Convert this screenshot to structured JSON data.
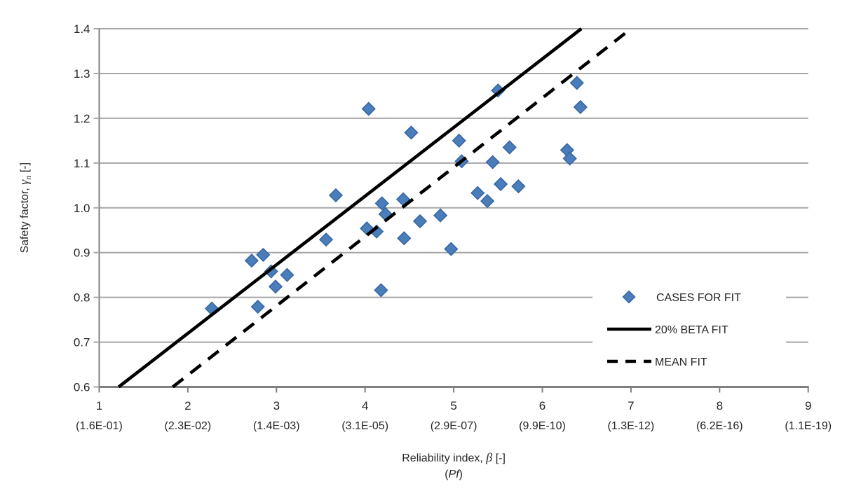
{
  "chart_data": {
    "type": "scatter",
    "title": "",
    "xlabel": {
      "text": "Reliability index, ",
      "symbol": "β",
      "unit": " [-]"
    },
    "xlabel_sub": {
      "pre": "(",
      "em": "Pf",
      "post": ")"
    },
    "ylabel": {
      "text": "Safety factor, ",
      "symbol": "γ",
      "sub": "n",
      "unit": " [-]"
    },
    "xlim": [
      1,
      9
    ],
    "ylim": [
      0.6,
      1.4
    ],
    "grid": true,
    "legend_position": "inside-lower-right",
    "x_ticks": [
      {
        "beta": "1",
        "pf": "(1.6E-01)"
      },
      {
        "beta": "2",
        "pf": "(2.3E-02)"
      },
      {
        "beta": "3",
        "pf": "(1.4E-03)"
      },
      {
        "beta": "4",
        "pf": "(3.1E-05)"
      },
      {
        "beta": "5",
        "pf": "(2.9E-07)"
      },
      {
        "beta": "6",
        "pf": "(9.9E-10)"
      },
      {
        "beta": "7",
        "pf": "(1.3E-12)"
      },
      {
        "beta": "8",
        "pf": "(6.2E-16)"
      },
      {
        "beta": "9",
        "pf": "(1.1E-19)"
      }
    ],
    "y_ticks": [
      "0.6",
      "0.7",
      "0.8",
      "0.9",
      "1.0",
      "1.1",
      "1.2",
      "1.3",
      "1.4"
    ],
    "series": [
      {
        "name": "CASES FOR FIT",
        "kind": "scatter",
        "marker": "diamond",
        "points": [
          [
            2.27,
            0.775
          ],
          [
            2.72,
            0.882
          ],
          [
            2.79,
            0.779
          ],
          [
            2.85,
            0.895
          ],
          [
            2.94,
            0.858
          ],
          [
            2.99,
            0.824
          ],
          [
            3.12,
            0.85
          ],
          [
            3.56,
            0.929
          ],
          [
            3.67,
            1.028
          ],
          [
            4.02,
            0.954
          ],
          [
            4.04,
            1.221
          ],
          [
            4.13,
            0.947
          ],
          [
            4.18,
            0.816
          ],
          [
            4.19,
            1.01
          ],
          [
            4.23,
            0.986
          ],
          [
            4.43,
            1.019
          ],
          [
            4.44,
            0.932
          ],
          [
            4.52,
            1.168
          ],
          [
            4.62,
            0.97
          ],
          [
            4.85,
            0.983
          ],
          [
            4.97,
            0.908
          ],
          [
            5.06,
            1.15
          ],
          [
            5.09,
            1.104
          ],
          [
            5.27,
            1.033
          ],
          [
            5.38,
            1.015
          ],
          [
            5.44,
            1.102
          ],
          [
            5.5,
            1.262
          ],
          [
            5.53,
            1.053
          ],
          [
            5.63,
            1.135
          ],
          [
            5.73,
            1.048
          ],
          [
            6.28,
            1.129
          ],
          [
            6.31,
            1.11
          ],
          [
            6.39,
            1.279
          ],
          [
            6.43,
            1.225
          ]
        ]
      },
      {
        "name": "20% BETA FIT",
        "kind": "line",
        "dash": false,
        "x": [
          1.22,
          6.44
        ],
        "y": [
          0.6,
          1.4
        ]
      },
      {
        "name": "MEAN FIT",
        "kind": "line",
        "dash": true,
        "x": [
          1.83,
          7.0
        ],
        "y": [
          0.6,
          1.4
        ]
      }
    ],
    "colors": {
      "marker": "#4A7EBB",
      "marker_edge": "#3867A3",
      "line": "#000000",
      "grid": "#A6A6A6",
      "axis": "#7F7F7F",
      "text": "#262626",
      "background": "#FFFFFF"
    }
  }
}
